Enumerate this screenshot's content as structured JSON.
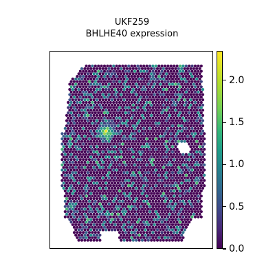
{
  "chart_data": {
    "type": "scatter",
    "title": "UKF259",
    "subtitle": "BHLHE40 expression",
    "xlabel": "",
    "ylabel": "",
    "colorbar": {
      "label": "",
      "range": [
        0.0,
        2.35
      ],
      "ticks": [
        "0.0",
        "0.5",
        "1.0",
        "1.5",
        "2.0"
      ],
      "colormap": "viridis",
      "colors": [
        "#440154",
        "#3b528b",
        "#21918c",
        "#5ec962",
        "#fde725"
      ]
    },
    "background_level": 0.0,
    "hotspots": [
      {
        "region": "left-center",
        "max_value": 2.3
      },
      {
        "region": "lower-left",
        "max_value": 1.3
      }
    ],
    "grid": false,
    "axes_visible": false
  }
}
